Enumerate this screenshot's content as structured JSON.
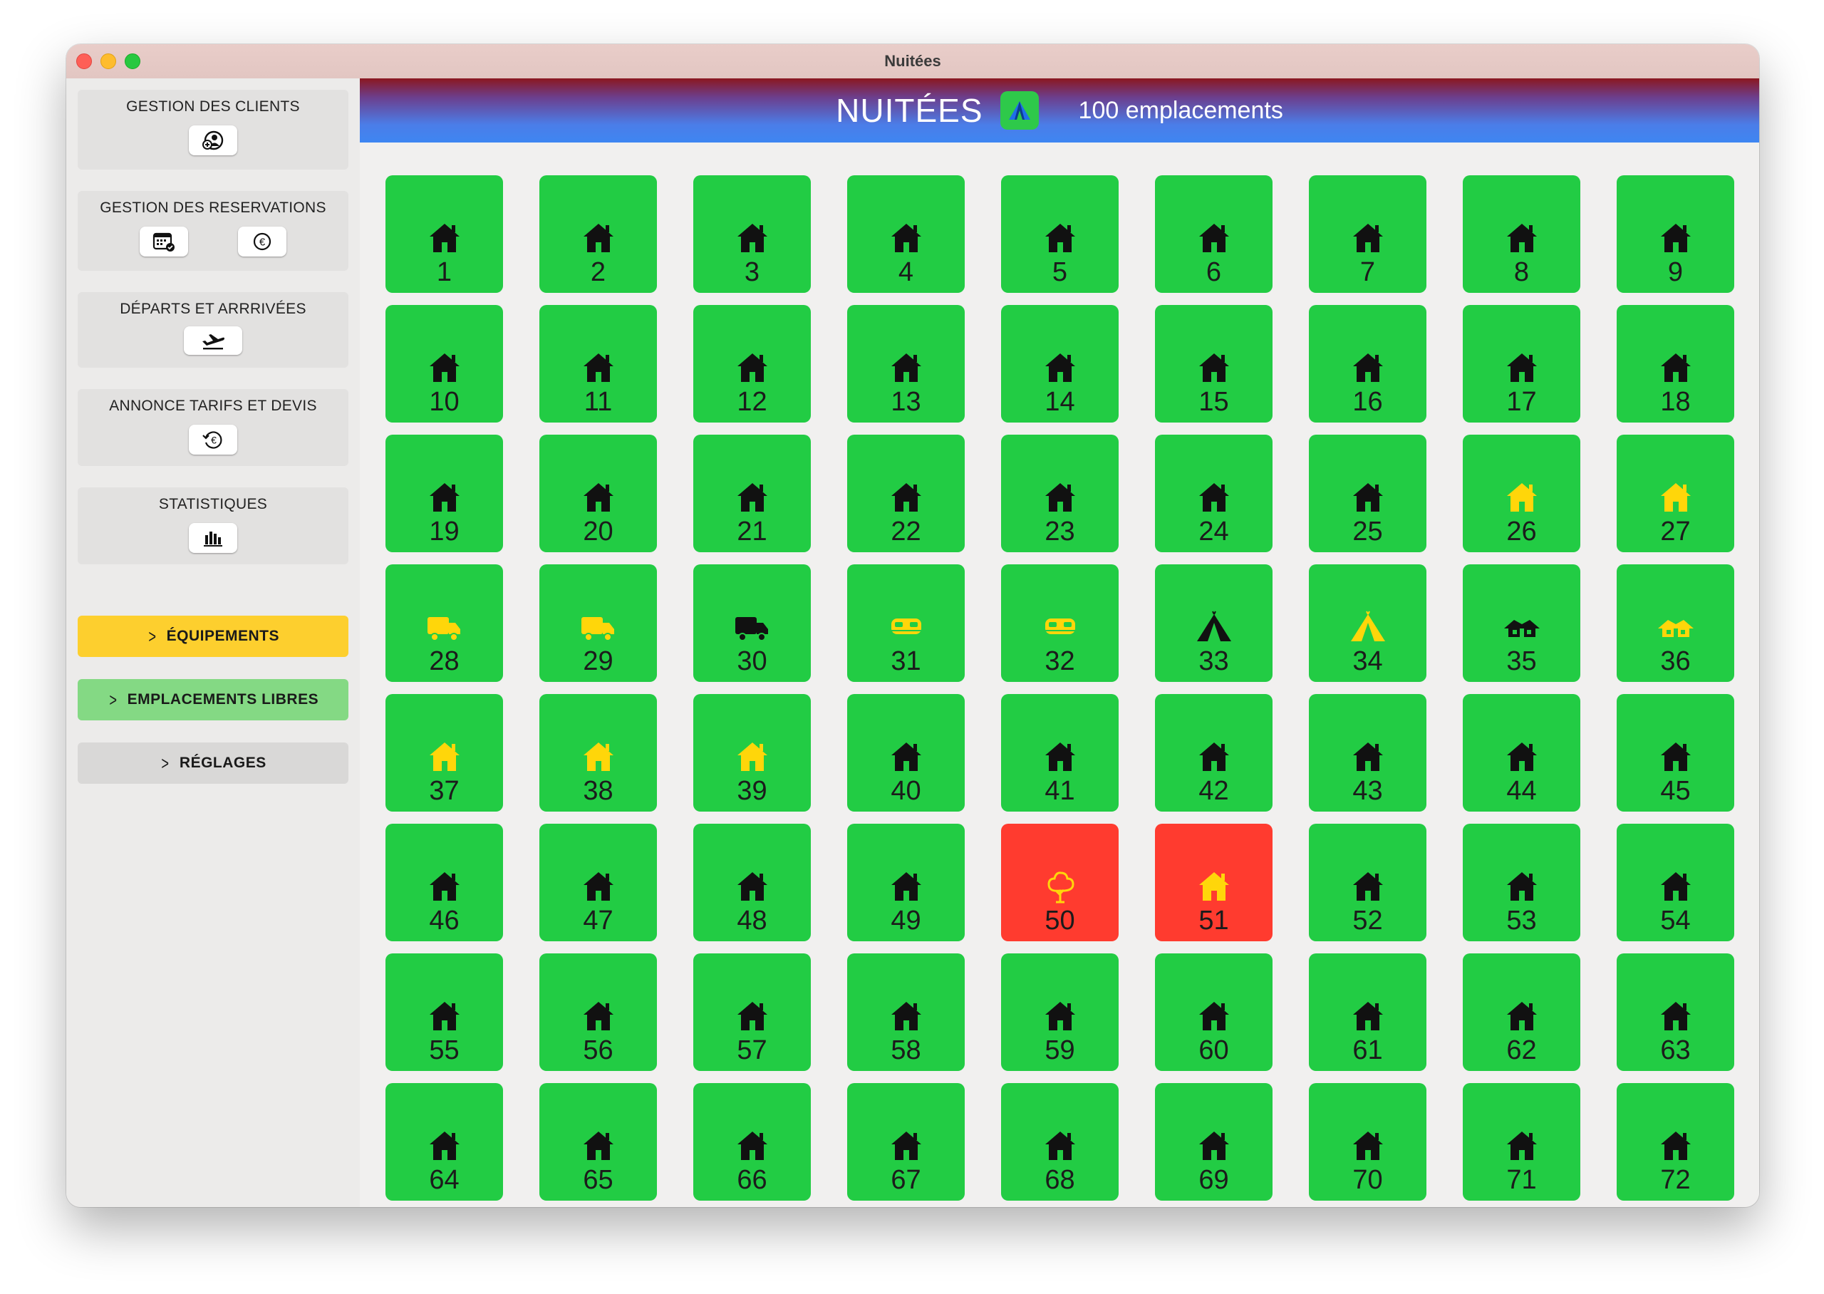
{
  "window": {
    "title": "Nuitées"
  },
  "sidebar": {
    "clients": {
      "label": "GESTION DES CLIENTS"
    },
    "reservations": {
      "label": "GESTION DES RESERVATIONS"
    },
    "departures": {
      "label": "DÉPARTS ET ARRRIVÉES"
    },
    "pricing": {
      "label": "ANNONCE TARIFS ET DEVIS"
    },
    "stats": {
      "label": "STATISTIQUES"
    },
    "equipements": {
      "label": "ÉQUIPEMENTS",
      "color": "#fdcf2e"
    },
    "libres": {
      "label": "EMPLACEMENTS LIBRES",
      "color": "#84d984"
    },
    "reglages": {
      "label": "RÉGLAGES",
      "color": "#d9d8d7"
    }
  },
  "header": {
    "title": "NUITÉES",
    "subtitle": "100 emplacements"
  },
  "colors": {
    "free": "#22cc44",
    "occupied": "#ff3b2f",
    "icon_dark": "#111111",
    "icon_yellow": "#ffd60a"
  },
  "sites": [
    {
      "n": "1",
      "icon": "house",
      "c": "dark",
      "occupied": false
    },
    {
      "n": "2",
      "icon": "house",
      "c": "dark",
      "occupied": false
    },
    {
      "n": "3",
      "icon": "house",
      "c": "dark",
      "occupied": false
    },
    {
      "n": "4",
      "icon": "house",
      "c": "dark",
      "occupied": false
    },
    {
      "n": "5",
      "icon": "house",
      "c": "dark",
      "occupied": false
    },
    {
      "n": "6",
      "icon": "house",
      "c": "dark",
      "occupied": false
    },
    {
      "n": "7",
      "icon": "house",
      "c": "dark",
      "occupied": false
    },
    {
      "n": "8",
      "icon": "house",
      "c": "dark",
      "occupied": false
    },
    {
      "n": "9",
      "icon": "house",
      "c": "dark",
      "occupied": false
    },
    {
      "n": "10",
      "icon": "house",
      "c": "dark",
      "occupied": false
    },
    {
      "n": "11",
      "icon": "house",
      "c": "dark",
      "occupied": false
    },
    {
      "n": "12",
      "icon": "house",
      "c": "dark",
      "occupied": false
    },
    {
      "n": "13",
      "icon": "house",
      "c": "dark",
      "occupied": false
    },
    {
      "n": "14",
      "icon": "house",
      "c": "dark",
      "occupied": false
    },
    {
      "n": "15",
      "icon": "house",
      "c": "dark",
      "occupied": false
    },
    {
      "n": "16",
      "icon": "house",
      "c": "dark",
      "occupied": false
    },
    {
      "n": "17",
      "icon": "house",
      "c": "dark",
      "occupied": false
    },
    {
      "n": "18",
      "icon": "house",
      "c": "dark",
      "occupied": false
    },
    {
      "n": "19",
      "icon": "house",
      "c": "dark",
      "occupied": false
    },
    {
      "n": "20",
      "icon": "house",
      "c": "dark",
      "occupied": false
    },
    {
      "n": "21",
      "icon": "house",
      "c": "dark",
      "occupied": false
    },
    {
      "n": "22",
      "icon": "house",
      "c": "dark",
      "occupied": false
    },
    {
      "n": "23",
      "icon": "house",
      "c": "dark",
      "occupied": false
    },
    {
      "n": "24",
      "icon": "house",
      "c": "dark",
      "occupied": false
    },
    {
      "n": "25",
      "icon": "house",
      "c": "dark",
      "occupied": false
    },
    {
      "n": "26",
      "icon": "house",
      "c": "yellow",
      "occupied": false
    },
    {
      "n": "27",
      "icon": "house",
      "c": "yellow",
      "occupied": false
    },
    {
      "n": "28",
      "icon": "truck",
      "c": "yellow",
      "occupied": false
    },
    {
      "n": "29",
      "icon": "truck",
      "c": "yellow",
      "occupied": false
    },
    {
      "n": "30",
      "icon": "truck",
      "c": "dark",
      "occupied": false
    },
    {
      "n": "31",
      "icon": "van",
      "c": "yellow",
      "occupied": false
    },
    {
      "n": "32",
      "icon": "van",
      "c": "yellow",
      "occupied": false
    },
    {
      "n": "33",
      "icon": "tent",
      "c": "dark",
      "occupied": false
    },
    {
      "n": "34",
      "icon": "tent",
      "c": "yellow",
      "occupied": false
    },
    {
      "n": "35",
      "icon": "cabin",
      "c": "dark",
      "occupied": false
    },
    {
      "n": "36",
      "icon": "cabin",
      "c": "yellow",
      "occupied": false
    },
    {
      "n": "37",
      "icon": "house",
      "c": "yellow",
      "occupied": false
    },
    {
      "n": "38",
      "icon": "house",
      "c": "yellow",
      "occupied": false
    },
    {
      "n": "39",
      "icon": "house",
      "c": "yellow",
      "occupied": false
    },
    {
      "n": "40",
      "icon": "house",
      "c": "dark",
      "occupied": false
    },
    {
      "n": "41",
      "icon": "house",
      "c": "dark",
      "occupied": false
    },
    {
      "n": "42",
      "icon": "house",
      "c": "dark",
      "occupied": false
    },
    {
      "n": "43",
      "icon": "house",
      "c": "dark",
      "occupied": false
    },
    {
      "n": "44",
      "icon": "house",
      "c": "dark",
      "occupied": false
    },
    {
      "n": "45",
      "icon": "house",
      "c": "dark",
      "occupied": false
    },
    {
      "n": "46",
      "icon": "house",
      "c": "dark",
      "occupied": false
    },
    {
      "n": "47",
      "icon": "house",
      "c": "dark",
      "occupied": false
    },
    {
      "n": "48",
      "icon": "house",
      "c": "dark",
      "occupied": false
    },
    {
      "n": "49",
      "icon": "house",
      "c": "dark",
      "occupied": false
    },
    {
      "n": "50",
      "icon": "tree",
      "c": "yellow",
      "occupied": true
    },
    {
      "n": "51",
      "icon": "house",
      "c": "yellow",
      "occupied": true
    },
    {
      "n": "52",
      "icon": "house",
      "c": "dark",
      "occupied": false
    },
    {
      "n": "53",
      "icon": "house",
      "c": "dark",
      "occupied": false
    },
    {
      "n": "54",
      "icon": "house",
      "c": "dark",
      "occupied": false
    },
    {
      "n": "55",
      "icon": "house",
      "c": "dark",
      "occupied": false
    },
    {
      "n": "56",
      "icon": "house",
      "c": "dark",
      "occupied": false
    },
    {
      "n": "57",
      "icon": "house",
      "c": "dark",
      "occupied": false
    },
    {
      "n": "58",
      "icon": "house",
      "c": "dark",
      "occupied": false
    },
    {
      "n": "59",
      "icon": "house",
      "c": "dark",
      "occupied": false
    },
    {
      "n": "60",
      "icon": "house",
      "c": "dark",
      "occupied": false
    },
    {
      "n": "61",
      "icon": "house",
      "c": "dark",
      "occupied": false
    },
    {
      "n": "62",
      "icon": "house",
      "c": "dark",
      "occupied": false
    },
    {
      "n": "63",
      "icon": "house",
      "c": "dark",
      "occupied": false
    },
    {
      "n": "64",
      "icon": "house",
      "c": "dark",
      "occupied": false
    },
    {
      "n": "65",
      "icon": "house",
      "c": "dark",
      "occupied": false
    },
    {
      "n": "66",
      "icon": "house",
      "c": "dark",
      "occupied": false
    },
    {
      "n": "67",
      "icon": "house",
      "c": "dark",
      "occupied": false
    },
    {
      "n": "68",
      "icon": "house",
      "c": "dark",
      "occupied": false
    },
    {
      "n": "69",
      "icon": "house",
      "c": "dark",
      "occupied": false
    },
    {
      "n": "70",
      "icon": "house",
      "c": "dark",
      "occupied": false
    },
    {
      "n": "71",
      "icon": "house",
      "c": "dark",
      "occupied": false
    },
    {
      "n": "72",
      "icon": "house",
      "c": "dark",
      "occupied": false
    }
  ]
}
